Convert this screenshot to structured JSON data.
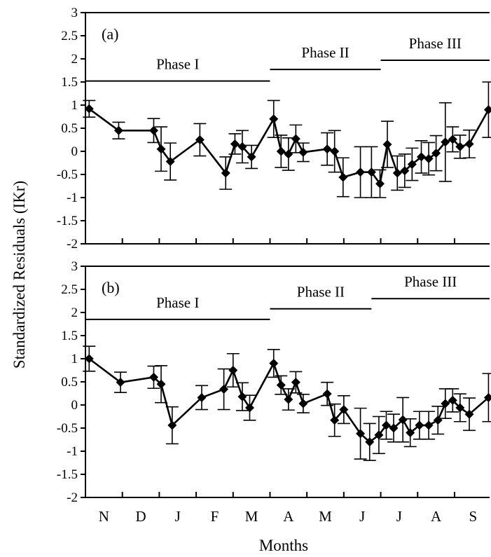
{
  "chart_data": {
    "type": "line",
    "ylabel": "Standardized Residuals (IKr)",
    "xlabel": "Months",
    "month_labels": [
      "N",
      "D",
      "J",
      "F",
      "M",
      "A",
      "M",
      "J",
      "J",
      "A",
      "S"
    ],
    "yticks": [
      "3",
      "2.5",
      "2",
      "1.5",
      "1",
      "0.5",
      "0",
      "-0.5",
      "-1",
      "-1.5",
      "-2"
    ],
    "ylim": [
      -2,
      3
    ],
    "x_unit": "months since start of November",
    "xlim": [
      0,
      10.95
    ],
    "panels": [
      {
        "label": "(a)",
        "phases": [
          {
            "name": "Phase I",
            "start": 0,
            "end": 5.0
          },
          {
            "name": "Phase II",
            "start": 5.0,
            "end": 8.0
          },
          {
            "name": "Phase III",
            "start": 8.0,
            "end": 10.95
          }
        ],
        "points": [
          {
            "x": 0.1,
            "y": 0.92,
            "err": 0.18
          },
          {
            "x": 0.9,
            "y": 0.45,
            "err": 0.18
          },
          {
            "x": 1.85,
            "y": 0.45,
            "err": 0.26
          },
          {
            "x": 2.05,
            "y": 0.05,
            "err": 0.48
          },
          {
            "x": 2.3,
            "y": -0.22,
            "err": 0.4
          },
          {
            "x": 3.1,
            "y": 0.25,
            "err": 0.35
          },
          {
            "x": 3.8,
            "y": -0.47,
            "err": 0.35
          },
          {
            "x": 4.05,
            "y": 0.16,
            "err": 0.22
          },
          {
            "x": 4.25,
            "y": 0.1,
            "err": 0.35
          },
          {
            "x": 4.5,
            "y": -0.12,
            "err": 0.25
          },
          {
            "x": 5.1,
            "y": 0.7,
            "err": 0.4
          },
          {
            "x": 5.3,
            "y": 0.0,
            "err": 0.35
          },
          {
            "x": 5.5,
            "y": -0.06,
            "err": 0.35
          },
          {
            "x": 5.7,
            "y": 0.27,
            "err": 0.3
          },
          {
            "x": 5.9,
            "y": -0.02,
            "err": 0.2
          },
          {
            "x": 6.55,
            "y": 0.05,
            "err": 0.35
          },
          {
            "x": 6.75,
            "y": 0.0,
            "err": 0.45
          },
          {
            "x": 6.98,
            "y": -0.56,
            "err": 0.42
          },
          {
            "x": 7.45,
            "y": -0.45,
            "err": 0.55
          },
          {
            "x": 7.75,
            "y": -0.45,
            "err": 0.55
          },
          {
            "x": 7.98,
            "y": -0.7,
            "err": 0.3
          },
          {
            "x": 8.18,
            "y": 0.15,
            "err": 0.5
          },
          {
            "x": 8.45,
            "y": -0.47,
            "err": 0.37
          },
          {
            "x": 8.65,
            "y": -0.42,
            "err": 0.36
          },
          {
            "x": 8.85,
            "y": -0.28,
            "err": 0.35
          },
          {
            "x": 9.1,
            "y": -0.12,
            "err": 0.35
          },
          {
            "x": 9.3,
            "y": -0.16,
            "err": 0.35
          },
          {
            "x": 9.5,
            "y": -0.04,
            "err": 0.38
          },
          {
            "x": 9.75,
            "y": 0.2,
            "err": 0.85
          },
          {
            "x": 9.95,
            "y": 0.26,
            "err": 0.27
          },
          {
            "x": 10.15,
            "y": 0.1,
            "err": 0.25
          },
          {
            "x": 10.4,
            "y": 0.16,
            "err": 0.3
          },
          {
            "x": 10.92,
            "y": 0.9,
            "err": 0.6
          }
        ]
      },
      {
        "label": "(b)",
        "phases": [
          {
            "name": "Phase I",
            "start": 0,
            "end": 5.0
          },
          {
            "name": "Phase II",
            "start": 5.0,
            "end": 7.75
          },
          {
            "name": "Phase III",
            "start": 7.75,
            "end": 10.95
          }
        ],
        "points": [
          {
            "x": 0.1,
            "y": 1.0,
            "err": 0.27
          },
          {
            "x": 0.95,
            "y": 0.49,
            "err": 0.22
          },
          {
            "x": 1.85,
            "y": 0.6,
            "err": 0.24
          },
          {
            "x": 2.05,
            "y": 0.45,
            "err": 0.4
          },
          {
            "x": 2.35,
            "y": -0.44,
            "err": 0.4
          },
          {
            "x": 3.15,
            "y": 0.16,
            "err": 0.26
          },
          {
            "x": 3.75,
            "y": 0.34,
            "err": 0.44
          },
          {
            "x": 4.0,
            "y": 0.75,
            "err": 0.36
          },
          {
            "x": 4.25,
            "y": 0.18,
            "err": 0.3
          },
          {
            "x": 4.45,
            "y": -0.06,
            "err": 0.27
          },
          {
            "x": 5.1,
            "y": 0.9,
            "err": 0.3
          },
          {
            "x": 5.3,
            "y": 0.43,
            "err": 0.2
          },
          {
            "x": 5.5,
            "y": 0.12,
            "err": 0.23
          },
          {
            "x": 5.7,
            "y": 0.49,
            "err": 0.23
          },
          {
            "x": 5.9,
            "y": 0.03,
            "err": 0.2
          },
          {
            "x": 6.55,
            "y": 0.24,
            "err": 0.25
          },
          {
            "x": 6.75,
            "y": -0.33,
            "err": 0.35
          },
          {
            "x": 7.0,
            "y": -0.1,
            "err": 0.3
          },
          {
            "x": 7.45,
            "y": -0.62,
            "err": 0.55
          },
          {
            "x": 7.7,
            "y": -0.8,
            "err": 0.4
          },
          {
            "x": 7.95,
            "y": -0.65,
            "err": 0.4
          },
          {
            "x": 8.15,
            "y": -0.44,
            "err": 0.3
          },
          {
            "x": 8.35,
            "y": -0.5,
            "err": 0.3
          },
          {
            "x": 8.6,
            "y": -0.32,
            "err": 0.48
          },
          {
            "x": 8.8,
            "y": -0.6,
            "err": 0.3
          },
          {
            "x": 9.05,
            "y": -0.44,
            "err": 0.3
          },
          {
            "x": 9.3,
            "y": -0.44,
            "err": 0.3
          },
          {
            "x": 9.55,
            "y": -0.33,
            "err": 0.3
          },
          {
            "x": 9.75,
            "y": 0.03,
            "err": 0.32
          },
          {
            "x": 9.95,
            "y": 0.1,
            "err": 0.25
          },
          {
            "x": 10.15,
            "y": -0.06,
            "err": 0.3
          },
          {
            "x": 10.4,
            "y": -0.2,
            "err": 0.35
          },
          {
            "x": 10.92,
            "y": 0.16,
            "err": 0.52
          }
        ]
      }
    ]
  }
}
